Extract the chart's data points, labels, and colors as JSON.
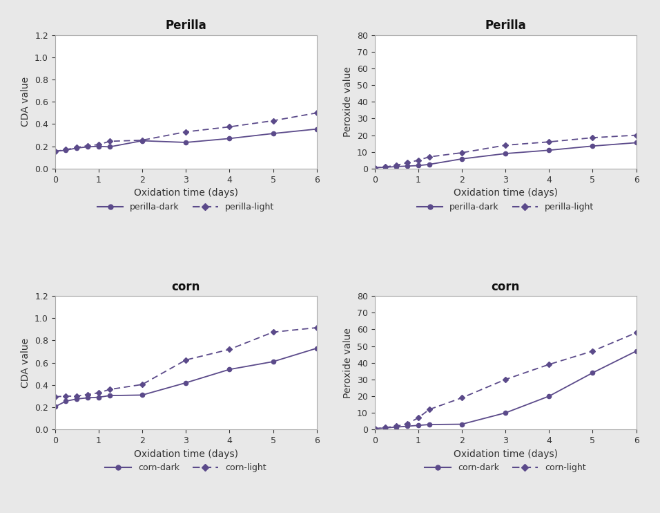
{
  "perilla_cda_x": [
    0,
    0.25,
    0.5,
    0.75,
    1.0,
    1.25,
    2.0,
    3.0,
    4.0,
    5.0,
    6.0
  ],
  "perilla_cda_dark": [
    0.155,
    0.165,
    0.185,
    0.195,
    0.2,
    0.195,
    0.25,
    0.235,
    0.27,
    0.315,
    0.355
  ],
  "perilla_cda_light": [
    0.155,
    0.17,
    0.19,
    0.205,
    0.215,
    0.245,
    0.255,
    0.33,
    0.375,
    0.43,
    0.5
  ],
  "perilla_pv_x": [
    0,
    0.25,
    0.5,
    0.75,
    1.0,
    1.25,
    2.0,
    3.0,
    4.0,
    5.0,
    6.0
  ],
  "perilla_pv_dark": [
    0.5,
    0.8,
    1.2,
    1.5,
    1.8,
    2.5,
    5.8,
    9.0,
    11.0,
    13.5,
    15.5
  ],
  "perilla_pv_light": [
    0.5,
    1.0,
    2.0,
    3.5,
    5.0,
    7.0,
    9.5,
    14.0,
    16.0,
    18.5,
    20.0
  ],
  "corn_cda_x": [
    0,
    0.25,
    0.5,
    0.75,
    1.0,
    1.25,
    2.0,
    3.0,
    4.0,
    5.0,
    6.0
  ],
  "corn_cda_dark": [
    0.205,
    0.255,
    0.275,
    0.285,
    0.29,
    0.305,
    0.31,
    0.42,
    0.54,
    0.61,
    0.73
  ],
  "corn_cda_light": [
    0.295,
    0.3,
    0.3,
    0.315,
    0.33,
    0.36,
    0.405,
    0.625,
    0.72,
    0.875,
    0.915
  ],
  "corn_pv_x": [
    0,
    0.25,
    0.5,
    0.75,
    1.0,
    1.25,
    2.0,
    3.0,
    4.0,
    5.0,
    6.0
  ],
  "corn_pv_dark": [
    0.5,
    1.0,
    1.5,
    2.0,
    2.5,
    3.0,
    3.2,
    10.0,
    20.0,
    34.0,
    47.0
  ],
  "corn_pv_light": [
    0.5,
    1.2,
    2.0,
    3.5,
    7.0,
    12.0,
    19.0,
    30.0,
    39.0,
    47.0,
    58.0
  ],
  "line_color": "#5b4a8a",
  "fig_facecolor": "#e8e8e8",
  "panel_facecolor": "#ffffff",
  "title_perilla": "Perilla",
  "title_corn": "corn",
  "xlabel": "Oxidation time (days)",
  "ylabel_cda": "CDA value",
  "ylabel_pv": "Peroxide value",
  "legend_dark_perilla": "perilla-dark",
  "legend_light_perilla": "perilla-light",
  "legend_dark_corn": "corn-dark",
  "legend_light_corn": "corn-light"
}
